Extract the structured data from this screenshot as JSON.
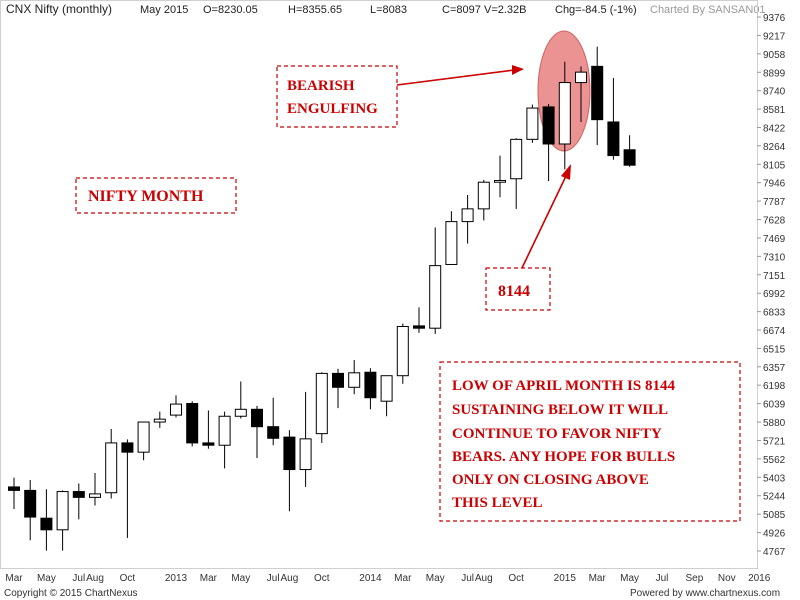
{
  "header": {
    "title": "CNX Nifty (monthly)",
    "period": "May 2015",
    "open": "O=8230.05",
    "high": "H=8355.65",
    "low": "L=8083",
    "close": "C=8097",
    "volume": "V=2.32B",
    "change": "Chg=-84.5 (-1%)",
    "charted_by": "Charted By SANSAN01"
  },
  "footer": {
    "copyright": "Copyright © 2015 ChartNexus",
    "powered_by": "Powered by www.chartnexus.com"
  },
  "annotations": {
    "pattern_line1": "BEARISH",
    "pattern_line2": "ENGULFING",
    "nifty_month": "NIFTY MONTH",
    "level": "8144",
    "note_lines": [
      "LOW OF APRIL MONTH IS 8144",
      "SUSTAINING BELOW IT WILL",
      "CONTINUE TO FAVOR NIFTY",
      "BEARS. ANY HOPE FOR BULLS",
      "ONLY ON CLOSING ABOVE",
      "THIS LEVEL"
    ]
  },
  "colors": {
    "up_fill": "#ffffff",
    "down_fill": "#000000",
    "annotation": "#cc0000",
    "highlight": "#e88080"
  },
  "chart_data": {
    "type": "candlestick",
    "title": "CNX Nifty (monthly)",
    "ylim": [
      4700,
      9420
    ],
    "y_ticks": [
      9376,
      9217,
      9058,
      8899,
      8740,
      8581,
      8422,
      8264,
      8105,
      7946,
      7787,
      7628,
      7469,
      7310,
      7151,
      6992,
      6833,
      6674,
      6515,
      6357,
      6198,
      6039,
      5880,
      5721,
      5562,
      5403,
      5244,
      5085,
      4926,
      4767
    ],
    "x_labels": [
      {
        "label": "Mar",
        "index": 0
      },
      {
        "label": "May",
        "index": 2
      },
      {
        "label": "Jul",
        "index": 4
      },
      {
        "label": "Aug",
        "index": 5
      },
      {
        "label": "Oct",
        "index": 7
      },
      {
        "label": "2013",
        "index": 10
      },
      {
        "label": "Mar",
        "index": 12
      },
      {
        "label": "May",
        "index": 14
      },
      {
        "label": "Jul",
        "index": 16
      },
      {
        "label": "Aug",
        "index": 17
      },
      {
        "label": "Oct",
        "index": 19
      },
      {
        "label": "2014",
        "index": 22
      },
      {
        "label": "Mar",
        "index": 24
      },
      {
        "label": "May",
        "index": 26
      },
      {
        "label": "Jul",
        "index": 28
      },
      {
        "label": "Aug",
        "index": 29
      },
      {
        "label": "Oct",
        "index": 31
      },
      {
        "label": "2015",
        "index": 34
      },
      {
        "label": "Mar",
        "index": 36
      },
      {
        "label": "May",
        "index": 38
      },
      {
        "label": "Jul",
        "index": 40
      },
      {
        "label": "Sep",
        "index": 42
      },
      {
        "label": "Nov",
        "index": 44
      },
      {
        "label": "2016",
        "index": 46
      }
    ],
    "candles": [
      {
        "month": "Mar 2012",
        "open": 5320,
        "high": 5400,
        "low": 5130,
        "close": 5290
      },
      {
        "month": "Apr 2012",
        "open": 5290,
        "high": 5380,
        "low": 4860,
        "close": 5060
      },
      {
        "month": "May 2012",
        "open": 5050,
        "high": 5300,
        "low": 4770,
        "close": 4950
      },
      {
        "month": "Jun 2012",
        "open": 4950,
        "high": 5290,
        "low": 4770,
        "close": 5280
      },
      {
        "month": "Jul 2012",
        "open": 5280,
        "high": 5350,
        "low": 5040,
        "close": 5230
      },
      {
        "month": "Aug 2012",
        "open": 5230,
        "high": 5440,
        "low": 5160,
        "close": 5260
      },
      {
        "month": "Sep 2012",
        "open": 5270,
        "high": 5820,
        "low": 5220,
        "close": 5700
      },
      {
        "month": "Oct 2012",
        "open": 5700,
        "high": 5730,
        "low": 4880,
        "close": 5620
      },
      {
        "month": "Nov 2012",
        "open": 5620,
        "high": 5880,
        "low": 5550,
        "close": 5880
      },
      {
        "month": "Dec 2012",
        "open": 5880,
        "high": 5970,
        "low": 5830,
        "close": 5905
      },
      {
        "month": "Jan 2013",
        "open": 5940,
        "high": 6110,
        "low": 5920,
        "close": 6035
      },
      {
        "month": "Feb 2013",
        "open": 6040,
        "high": 6060,
        "low": 5670,
        "close": 5700
      },
      {
        "month": "Mar 2013",
        "open": 5700,
        "high": 5980,
        "low": 5650,
        "close": 5680
      },
      {
        "month": "Apr 2013",
        "open": 5680,
        "high": 5970,
        "low": 5480,
        "close": 5930
      },
      {
        "month": "May 2013",
        "open": 5930,
        "high": 6230,
        "low": 5910,
        "close": 5990
      },
      {
        "month": "Jun 2013",
        "open": 5990,
        "high": 6020,
        "low": 5570,
        "close": 5840
      },
      {
        "month": "Jul 2013",
        "open": 5840,
        "high": 6090,
        "low": 5680,
        "close": 5740
      },
      {
        "month": "Aug 2013",
        "open": 5750,
        "high": 5810,
        "low": 5110,
        "close": 5470
      },
      {
        "month": "Sep 2013",
        "open": 5470,
        "high": 6140,
        "low": 5320,
        "close": 5735
      },
      {
        "month": "Oct 2013",
        "open": 5780,
        "high": 6310,
        "low": 5700,
        "close": 6300
      },
      {
        "month": "Nov 2013",
        "open": 6300,
        "high": 6340,
        "low": 6000,
        "close": 6180
      },
      {
        "month": "Dec 2013",
        "open": 6180,
        "high": 6415,
        "low": 6120,
        "close": 6305
      },
      {
        "month": "Jan 2014",
        "open": 6310,
        "high": 6345,
        "low": 5990,
        "close": 6090
      },
      {
        "month": "Feb 2014",
        "open": 6060,
        "high": 6280,
        "low": 5930,
        "close": 6280
      },
      {
        "month": "Mar 2014",
        "open": 6280,
        "high": 6730,
        "low": 6210,
        "close": 6705
      },
      {
        "month": "Apr 2014",
        "open": 6710,
        "high": 6870,
        "low": 6650,
        "close": 6690
      },
      {
        "month": "May 2014",
        "open": 6690,
        "high": 7560,
        "low": 6640,
        "close": 7230
      },
      {
        "month": "Jun 2014",
        "open": 7240,
        "high": 7700,
        "low": 7240,
        "close": 7610
      },
      {
        "month": "Jul 2014",
        "open": 7610,
        "high": 7840,
        "low": 7420,
        "close": 7720
      },
      {
        "month": "Aug 2014",
        "open": 7720,
        "high": 7970,
        "low": 7620,
        "close": 7950
      },
      {
        "month": "Sep 2014",
        "open": 7950,
        "high": 8180,
        "low": 7820,
        "close": 7965
      },
      {
        "month": "Oct 2014",
        "open": 7980,
        "high": 8330,
        "low": 7720,
        "close": 8320
      },
      {
        "month": "Nov 2014",
        "open": 8320,
        "high": 8620,
        "low": 8290,
        "close": 8590
      },
      {
        "month": "Dec 2014",
        "open": 8600,
        "high": 8625,
        "low": 7960,
        "close": 8280
      },
      {
        "month": "Jan 2015",
        "open": 8280,
        "high": 8990,
        "low": 8060,
        "close": 8810
      },
      {
        "month": "Feb 2015",
        "open": 8810,
        "high": 8950,
        "low": 8470,
        "close": 8900
      },
      {
        "month": "Mar 2015",
        "open": 8950,
        "high": 9120,
        "low": 8270,
        "close": 8490
      },
      {
        "month": "Apr 2015",
        "open": 8470,
        "high": 8850,
        "low": 8144,
        "close": 8180
      },
      {
        "month": "May 2015",
        "open": 8230.05,
        "high": 8355.65,
        "low": 8083,
        "close": 8097
      }
    ]
  }
}
